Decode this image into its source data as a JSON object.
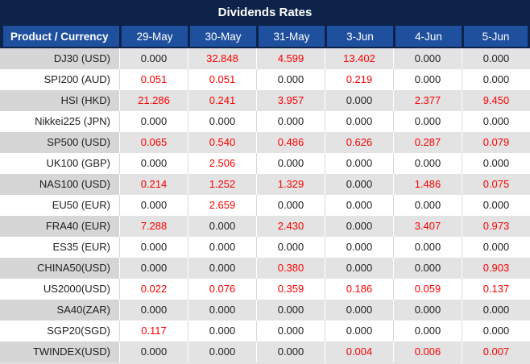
{
  "title": "Dividends Rates",
  "columns": {
    "product": "Product / Currency",
    "dates": [
      "29-May",
      "30-May",
      "31-May",
      "3-Jun",
      "4-Jun",
      "5-Jun"
    ]
  },
  "rows": [
    {
      "product": "DJ30 (USD)",
      "values": [
        "0.000",
        "32.848",
        "4.599",
        "13.402",
        "0.000",
        "0.000"
      ]
    },
    {
      "product": "SPI200 (AUD)",
      "values": [
        "0.051",
        "0.051",
        "0.000",
        "0.219",
        "0.000",
        "0.000"
      ]
    },
    {
      "product": "HSI (HKD)",
      "values": [
        "21.286",
        "0.241",
        "3.957",
        "0.000",
        "2.377",
        "9.450"
      ]
    },
    {
      "product": "Nikkei225 (JPN)",
      "values": [
        "0.000",
        "0.000",
        "0.000",
        "0.000",
        "0.000",
        "0.000"
      ]
    },
    {
      "product": "SP500 (USD)",
      "values": [
        "0.065",
        "0.540",
        "0.486",
        "0.626",
        "0.287",
        "0.079"
      ]
    },
    {
      "product": "UK100 (GBP)",
      "values": [
        "0.000",
        "2.506",
        "0.000",
        "0.000",
        "0.000",
        "0.000"
      ]
    },
    {
      "product": "NAS100 (USD)",
      "values": [
        "0.214",
        "1.252",
        "1.329",
        "0.000",
        "1.486",
        "0.075"
      ]
    },
    {
      "product": "EU50 (EUR)",
      "values": [
        "0.000",
        "2.659",
        "0.000",
        "0.000",
        "0.000",
        "0.000"
      ]
    },
    {
      "product": "FRA40 (EUR)",
      "values": [
        "7.288",
        "0.000",
        "2.430",
        "0.000",
        "3.407",
        "0.973"
      ]
    },
    {
      "product": "ES35 (EUR)",
      "values": [
        "0.000",
        "0.000",
        "0.000",
        "0.000",
        "0.000",
        "0.000"
      ]
    },
    {
      "product": "CHINA50(USD)",
      "values": [
        "0.000",
        "0.000",
        "0.380",
        "0.000",
        "0.000",
        "0.903"
      ]
    },
    {
      "product": "US2000(USD)",
      "values": [
        "0.022",
        "0.076",
        "0.359",
        "0.186",
        "0.059",
        "0.137"
      ]
    },
    {
      "product": "SA40(ZAR)",
      "values": [
        "0.000",
        "0.000",
        "0.000",
        "0.000",
        "0.000",
        "0.000"
      ]
    },
    {
      "product": "SGP20(SGD)",
      "values": [
        "0.117",
        "0.000",
        "0.000",
        "0.000",
        "0.000",
        "0.000"
      ]
    },
    {
      "product": "TWINDEX(USD)",
      "values": [
        "0.000",
        "0.000",
        "0.000",
        "0.004",
        "0.006",
        "0.007"
      ]
    }
  ],
  "colors": {
    "navy": "#0d2349",
    "header_blue": "#1e509e",
    "nonzero_value_red": "#fe0000",
    "shaded_row_product_bg": "#d6d6d6",
    "shaded_row_value_bg": "#e3e3e3"
  },
  "chart_data": {
    "type": "table",
    "title": "Dividends Rates",
    "columns": [
      "Product / Currency",
      "29-May",
      "30-May",
      "31-May",
      "3-Jun",
      "4-Jun",
      "5-Jun"
    ],
    "rows": [
      [
        "DJ30 (USD)",
        0.0,
        32.848,
        4.599,
        13.402,
        0.0,
        0.0
      ],
      [
        "SPI200 (AUD)",
        0.051,
        0.051,
        0.0,
        0.219,
        0.0,
        0.0
      ],
      [
        "HSI (HKD)",
        21.286,
        0.241,
        3.957,
        0.0,
        2.377,
        9.45
      ],
      [
        "Nikkei225 (JPN)",
        0.0,
        0.0,
        0.0,
        0.0,
        0.0,
        0.0
      ],
      [
        "SP500 (USD)",
        0.065,
        0.54,
        0.486,
        0.626,
        0.287,
        0.079
      ],
      [
        "UK100 (GBP)",
        0.0,
        2.506,
        0.0,
        0.0,
        0.0,
        0.0
      ],
      [
        "NAS100 (USD)",
        0.214,
        1.252,
        1.329,
        0.0,
        1.486,
        0.075
      ],
      [
        "EU50 (EUR)",
        0.0,
        2.659,
        0.0,
        0.0,
        0.0,
        0.0
      ],
      [
        "FRA40 (EUR)",
        7.288,
        0.0,
        2.43,
        0.0,
        3.407,
        0.973
      ],
      [
        "ES35 (EUR)",
        0.0,
        0.0,
        0.0,
        0.0,
        0.0,
        0.0
      ],
      [
        "CHINA50(USD)",
        0.0,
        0.0,
        0.38,
        0.0,
        0.0,
        0.903
      ],
      [
        "US2000(USD)",
        0.022,
        0.076,
        0.359,
        0.186,
        0.059,
        0.137
      ],
      [
        "SA40(ZAR)",
        0.0,
        0.0,
        0.0,
        0.0,
        0.0,
        0.0
      ],
      [
        "SGP20(SGD)",
        0.117,
        0.0,
        0.0,
        0.0,
        0.0,
        0.0
      ],
      [
        "TWINDEX(USD)",
        0.0,
        0.0,
        0.0,
        0.004,
        0.006,
        0.007
      ]
    ],
    "notes": "Non-zero values rendered in red; zero values in black. Rows alternate shaded/unshaded starting shaded."
  }
}
